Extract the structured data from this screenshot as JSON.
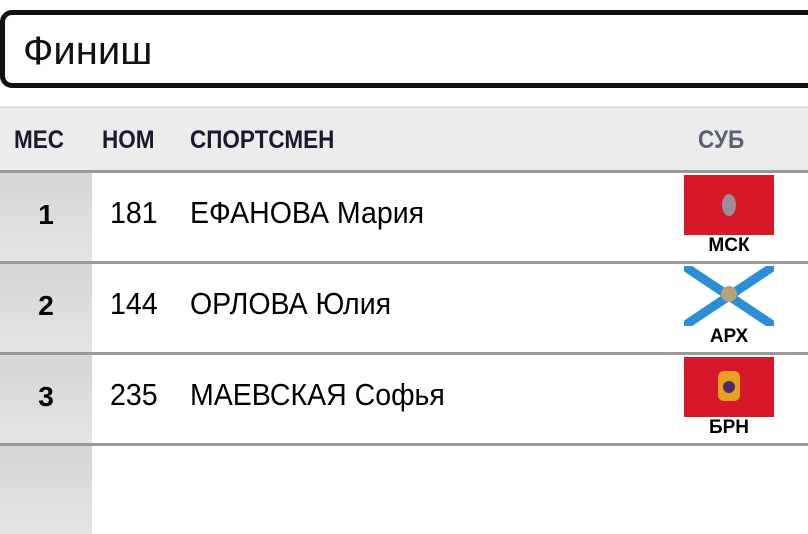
{
  "title": "Финиш",
  "header": {
    "place": "МЕС",
    "number": "НОМ",
    "athlete": "СПОРТСМЕН",
    "region": "СУБ"
  },
  "rows": [
    {
      "place": "1",
      "number": "181",
      "name": "ЕФАНОВА Мария",
      "region": "МСК",
      "flag": "moscow-flag"
    },
    {
      "place": "2",
      "number": "144",
      "name": "ОРЛОВА Юлия",
      "region": "АРХ",
      "flag": "arkhangelsk-flag"
    },
    {
      "place": "3",
      "number": "235",
      "name": "МАЕВСКАЯ Софья",
      "region": "БРН",
      "flag": "bryansk-flag"
    }
  ],
  "colors": {
    "red": "#d7182a",
    "blue": "#2a8fd6"
  }
}
